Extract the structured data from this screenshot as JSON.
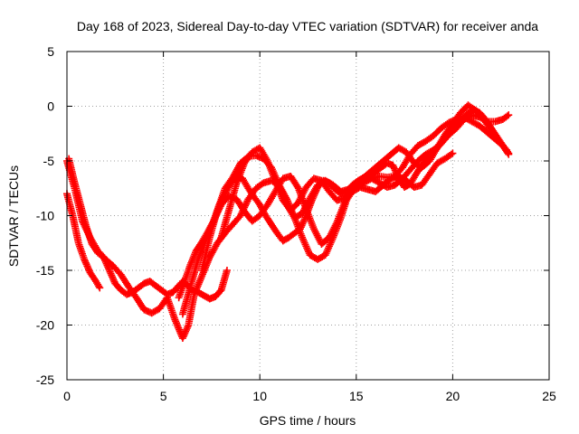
{
  "chart_data": {
    "type": "scatter",
    "title": "Day 168 of 2023, Sidereal Day-to-day VTEC variation (SDTVAR) for receiver anda",
    "xlabel": "GPS time / hours",
    "ylabel": "SDTVAR / TECUs",
    "xlim": [
      0,
      25
    ],
    "ylim": [
      -25,
      5
    ],
    "xticks": [
      0,
      5,
      10,
      15,
      20,
      25
    ],
    "yticks": [
      -25,
      -20,
      -15,
      -10,
      -5,
      0,
      5
    ],
    "grid": true,
    "legend": "none",
    "marker_color": "#ff0000",
    "series": [
      {
        "x": [
          0.0,
          0.3,
          0.6,
          0.9,
          1.2,
          1.5,
          1.7
        ],
        "y": [
          -8.0,
          -10.0,
          -12.5,
          -14.0,
          -15.2,
          -16.0,
          -16.6
        ]
      },
      {
        "x": [
          0.1,
          0.4,
          0.7,
          1.0,
          1.3,
          1.6,
          1.9,
          2.2,
          2.5,
          2.8,
          3.1,
          3.4,
          3.7,
          4.0,
          4.3,
          4.6,
          4.9,
          5.2,
          5.5,
          5.8,
          6.0,
          6.2,
          6.5,
          6.8,
          7.1,
          7.4,
          7.7,
          8.0,
          8.3
        ],
        "y": [
          -4.8,
          -7.0,
          -9.0,
          -11.0,
          -12.6,
          -13.4,
          -13.8,
          -15.0,
          -16.2,
          -16.8,
          -17.2,
          -17.0,
          -16.6,
          -16.2,
          -16.0,
          -16.4,
          -16.8,
          -17.2,
          -17.0,
          -16.4,
          -16.0,
          -16.3,
          -16.8,
          -17.0,
          -17.3,
          -17.6,
          -17.4,
          -16.8,
          -15.0
        ]
      },
      {
        "x": [
          0.0,
          0.4,
          0.8,
          1.2,
          1.6,
          2.0,
          2.4,
          2.8,
          3.2,
          3.6,
          4.0,
          4.4,
          4.8,
          5.2,
          5.6,
          6.0,
          6.3,
          6.6,
          7.0,
          7.4,
          7.8,
          8.2,
          8.6,
          9.0,
          9.4,
          9.8,
          10.2,
          10.6,
          11.0,
          11.4,
          11.8,
          12.2,
          12.6,
          13.0,
          13.4,
          13.8,
          14.2,
          14.6,
          15.0,
          15.4,
          15.8,
          16.2,
          16.6,
          17.0,
          17.4,
          17.8,
          18.2,
          18.6,
          19.0,
          19.4,
          19.8,
          20.2,
          20.6,
          21.0,
          21.4,
          21.8,
          22.2,
          22.6,
          22.9
        ],
        "y": [
          -5.0,
          -7.5,
          -10.5,
          -12.0,
          -13.2,
          -14.0,
          -14.6,
          -15.4,
          -16.5,
          -17.5,
          -18.6,
          -18.9,
          -18.5,
          -17.5,
          -19.5,
          -21.2,
          -20.0,
          -17.2,
          -15.5,
          -13.8,
          -12.5,
          -11.6,
          -10.8,
          -10.0,
          -8.5,
          -7.5,
          -7.0,
          -6.8,
          -7.2,
          -8.5,
          -10.2,
          -12.0,
          -13.6,
          -14.0,
          -13.6,
          -12.0,
          -10.2,
          -8.0,
          -7.3,
          -7.0,
          -6.6,
          -6.4,
          -6.5,
          -6.4,
          -5.6,
          -4.4,
          -3.6,
          -3.2,
          -2.7,
          -2.0,
          -1.5,
          -1.2,
          -1.0,
          -1.4,
          -1.8,
          -2.4,
          -3.0,
          -3.6,
          -4.3
        ]
      },
      {
        "x": [
          5.8,
          6.1,
          6.4,
          6.7,
          7.0,
          7.3,
          7.6,
          7.9,
          8.2,
          8.5,
          8.8,
          9.1,
          9.4,
          9.7,
          10.0,
          10.3,
          10.6,
          10.9,
          11.2,
          11.5,
          11.8,
          12.1,
          12.4,
          12.7,
          13.0,
          13.3,
          13.6,
          13.9,
          14.2,
          14.5,
          14.8,
          15.1,
          15.4,
          15.7,
          16.0,
          16.3,
          16.6,
          16.9,
          17.2,
          17.5,
          17.8,
          18.1,
          18.4,
          18.7,
          19.0,
          19.3,
          19.6,
          19.9,
          20.2,
          20.5,
          20.8,
          21.1,
          21.4,
          21.7,
          22.0,
          22.3,
          22.6,
          22.9
        ],
        "y": [
          -17.5,
          -16.0,
          -14.5,
          -13.2,
          -12.4,
          -11.5,
          -10.5,
          -9.0,
          -8.0,
          -7.0,
          -6.4,
          -6.6,
          -7.5,
          -8.3,
          -9.0,
          -10.0,
          -10.8,
          -11.6,
          -12.3,
          -12.0,
          -11.6,
          -11.2,
          -10.0,
          -8.6,
          -7.4,
          -6.8,
          -7.0,
          -7.6,
          -8.0,
          -7.8,
          -7.2,
          -6.8,
          -6.5,
          -6.3,
          -6.0,
          -5.6,
          -5.2,
          -5.4,
          -6.6,
          -7.4,
          -7.1,
          -6.2,
          -5.4,
          -4.8,
          -4.2,
          -3.6,
          -3.0,
          -2.4,
          -1.8,
          -1.2,
          -0.6,
          -0.3,
          -0.6,
          -1.2,
          -2.0,
          -2.8,
          -3.6,
          -4.4
        ]
      },
      {
        "x": [
          6.0,
          6.4,
          6.8,
          7.2,
          7.6,
          8.0,
          8.4,
          8.8,
          9.2,
          9.6,
          10.0,
          10.4,
          10.8,
          11.2,
          11.6,
          12.0,
          12.4,
          12.8,
          13.2,
          13.6,
          14.0,
          14.4,
          14.8,
          15.2,
          15.6,
          16.0,
          16.4,
          16.8,
          17.2,
          17.6,
          18.0,
          18.4,
          18.8,
          19.2,
          19.6,
          20.0
        ],
        "y": [
          -19.0,
          -16.5,
          -14.0,
          -12.2,
          -10.5,
          -9.0,
          -8.2,
          -8.5,
          -9.6,
          -10.5,
          -10.0,
          -9.0,
          -7.8,
          -6.6,
          -6.4,
          -7.5,
          -9.4,
          -11.2,
          -12.6,
          -12.0,
          -10.6,
          -8.8,
          -7.8,
          -7.4,
          -7.6,
          -7.8,
          -7.2,
          -6.6,
          -6.4,
          -6.8,
          -7.4,
          -7.2,
          -6.2,
          -5.2,
          -4.8,
          -4.3
        ]
      },
      {
        "x": [
          7.0,
          7.4,
          7.8,
          8.2,
          8.6,
          9.0,
          9.4,
          9.8,
          10.2,
          10.6,
          11.0,
          11.4,
          11.8,
          12.2,
          12.6,
          13.0,
          13.4,
          13.8,
          14.2,
          14.6,
          15.0,
          15.4,
          15.8,
          16.2,
          16.6,
          17.0,
          17.4,
          17.8,
          18.2,
          18.6,
          19.0,
          19.4,
          19.8,
          20.2,
          20.6,
          21.0,
          21.4,
          21.8,
          22.2,
          22.6,
          22.9
        ],
        "y": [
          -15.0,
          -12.0,
          -9.5,
          -7.5,
          -6.5,
          -5.2,
          -4.6,
          -4.5,
          -4.8,
          -5.6,
          -7.2,
          -9.0,
          -10.2,
          -9.8,
          -8.4,
          -7.2,
          -6.8,
          -7.2,
          -7.8,
          -7.6,
          -7.0,
          -6.6,
          -6.6,
          -7.0,
          -7.4,
          -7.2,
          -6.6,
          -5.8,
          -5.0,
          -4.4,
          -4.0,
          -3.4,
          -2.6,
          -2.0,
          -1.2,
          -0.8,
          -1.0,
          -1.4,
          -1.4,
          -1.2,
          -0.8
        ]
      },
      {
        "x": [
          8.0,
          8.4,
          8.8,
          9.2,
          9.6,
          10.0,
          10.4,
          10.8,
          11.2,
          11.6,
          12.0,
          12.4,
          12.8,
          13.2,
          13.6,
          14.0,
          14.4,
          14.8,
          15.2,
          15.6,
          16.0,
          16.4,
          16.8,
          17.2,
          17.6,
          18.0,
          18.4,
          18.8,
          19.2,
          19.6,
          20.0,
          20.4,
          20.8,
          21.2,
          21.6,
          22.0,
          22.4,
          22.8
        ],
        "y": [
          -12.0,
          -9.5,
          -7.0,
          -5.2,
          -4.2,
          -3.8,
          -5.0,
          -6.8,
          -8.6,
          -9.5,
          -8.8,
          -7.4,
          -6.6,
          -6.8,
          -7.8,
          -8.6,
          -8.4,
          -7.6,
          -6.8,
          -6.2,
          -5.6,
          -5.0,
          -4.4,
          -3.8,
          -4.2,
          -5.2,
          -5.6,
          -5.0,
          -3.8,
          -2.6,
          -1.6,
          -0.6,
          0.1,
          -0.4,
          -1.2,
          -2.2,
          -3.2,
          -4.0
        ]
      }
    ]
  }
}
